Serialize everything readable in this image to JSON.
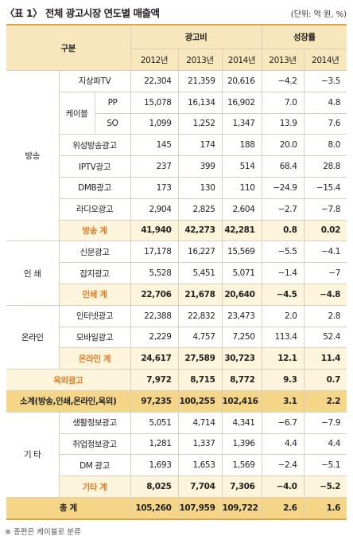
{
  "header": {
    "title": "〈표 1〉 전체 광고시장 연도별 매출액",
    "unit": "(단위: 억 원, %)"
  },
  "table": {
    "head": {
      "corner": "구분",
      "spend": "광고비",
      "growth": "성장률",
      "years": [
        "2012년",
        "2013년",
        "2014년",
        "2013년",
        "2014년"
      ]
    },
    "sections": [
      {
        "label": "방송",
        "rows": [
          {
            "label": "지상파TV",
            "cells": [
              "22,304",
              "21,359",
              "20,616",
              "−4.2",
              "−3.5"
            ]
          },
          {
            "label": "케이블",
            "subrows": [
              {
                "label": "PP",
                "cells": [
                  "15,078",
                  "16,134",
                  "16,902",
                  "7.0",
                  "4.8"
                ]
              },
              {
                "label": "SO",
                "cells": [
                  "1,099",
                  "1,252",
                  "1,347",
                  "13.9",
                  "7.6"
                ]
              }
            ]
          },
          {
            "label": "위성방송광고",
            "cells": [
              "145",
              "174",
              "188",
              "20.0",
              "8.0"
            ]
          },
          {
            "label": "IPTV광고",
            "cells": [
              "237",
              "399",
              "514",
              "68.4",
              "28.8"
            ]
          },
          {
            "label": "DMB광고",
            "cells": [
              "173",
              "130",
              "110",
              "−24.9",
              "−15.4"
            ]
          },
          {
            "label": "라디오광고",
            "cells": [
              "2,904",
              "2,825",
              "2,604",
              "−2.7",
              "−7.8"
            ]
          }
        ],
        "total": {
          "label": "방송 계",
          "cells": [
            "41,940",
            "42,273",
            "42,281",
            "0.8",
            "0.02"
          ]
        }
      },
      {
        "label": "인 쇄",
        "rows": [
          {
            "label": "신문광고",
            "cells": [
              "17,178",
              "16,227",
              "15,569",
              "−5.5",
              "−4.1"
            ]
          },
          {
            "label": "잡지광고",
            "cells": [
              "5,528",
              "5,451",
              "5,071",
              "−1.4",
              "−7"
            ]
          }
        ],
        "total": {
          "label": "인쇄 계",
          "cells": [
            "22,706",
            "21,678",
            "20,640",
            "−4.5",
            "−4.8"
          ]
        }
      },
      {
        "label": "온라인",
        "rows": [
          {
            "label": "인터넷광고",
            "cells": [
              "22,388",
              "22,832",
              "23,473",
              "2.0",
              "2.8"
            ]
          },
          {
            "label": "모바일광고",
            "cells": [
              "2,229",
              "4,757",
              "7,250",
              "113.4",
              "52.4"
            ]
          }
        ],
        "total": {
          "label": "온라인 계",
          "cells": [
            "24,617",
            "27,589",
            "30,723",
            "12.1",
            "11.4"
          ]
        }
      },
      {
        "label": "옥외광고",
        "cells": [
          "7,972",
          "8,715",
          "8,772",
          "9.3",
          "0.7"
        ]
      },
      {
        "label": "소계(방송,인쇄,온라인,옥외)",
        "cells": [
          "97,235",
          "100,255",
          "102,416",
          "3.1",
          "2.2"
        ]
      },
      {
        "label": "기 타",
        "rows": [
          {
            "label": "생활정보광고",
            "cells": [
              "5,051",
              "4,714",
              "4,341",
              "−6.7",
              "−7.9"
            ]
          },
          {
            "label": "취업정보광고",
            "cells": [
              "1,281",
              "1,337",
              "1,396",
              "4.4",
              "4.4"
            ]
          },
          {
            "label": "DM 광고",
            "cells": [
              "1,693",
              "1,653",
              "1,569",
              "−2.4",
              "−5.1"
            ]
          }
        ],
        "total": {
          "label": "기타 계",
          "cells": [
            "8,025",
            "7,704",
            "7,306",
            "−4.0",
            "−5.2"
          ]
        }
      },
      {
        "label": "총 계",
        "cells": [
          "105,260",
          "107,959",
          "109,722",
          "2.6",
          "1.6"
        ]
      }
    ]
  },
  "footnote": "※ 종편은 케이블로 분류"
}
